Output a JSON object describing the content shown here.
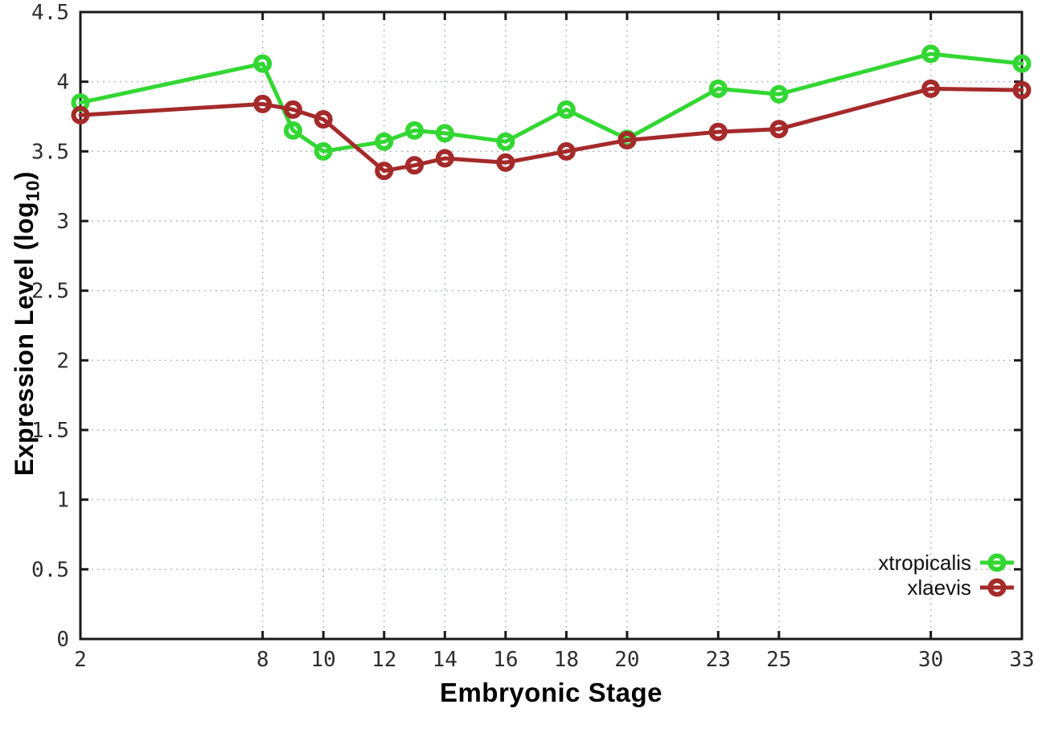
{
  "figure": {
    "background": "#ffffff",
    "border_color": "#1a1a1a",
    "grid_color": "#b2b8c2",
    "tick_label_color": "#2e2e2e"
  },
  "chart_data": {
    "type": "line",
    "title": "",
    "xlabel": "Embryonic Stage",
    "ylabel": "Expression Level (log10)",
    "ylabel_parts": {
      "pre": "Expression Level (log",
      "sub": "10",
      "post": ")"
    },
    "xlim": [
      2,
      33
    ],
    "ylim": [
      0,
      4.5
    ],
    "xticks": [
      2,
      8,
      10,
      12,
      14,
      16,
      18,
      20,
      23,
      25,
      30,
      33
    ],
    "yticks": [
      0,
      0.5,
      1,
      1.5,
      2,
      2.5,
      3,
      3.5,
      4,
      4.5
    ],
    "grid": true,
    "legend_position": "bottom-right-inside",
    "x": [
      2,
      8,
      9,
      10,
      12,
      13,
      14,
      16,
      18,
      20,
      23,
      25,
      30,
      33
    ],
    "series": [
      {
        "name": "xtropicalis",
        "color": "#33d733",
        "values": [
          3.85,
          4.13,
          3.65,
          3.5,
          3.57,
          3.65,
          3.63,
          3.57,
          3.8,
          3.59,
          3.95,
          3.91,
          4.2,
          4.13
        ]
      },
      {
        "name": "xlaevis",
        "color": "#a52a2a",
        "values": [
          3.76,
          3.84,
          3.8,
          3.73,
          3.36,
          3.4,
          3.45,
          3.42,
          3.5,
          3.58,
          3.64,
          3.66,
          3.95,
          3.94
        ]
      }
    ]
  }
}
